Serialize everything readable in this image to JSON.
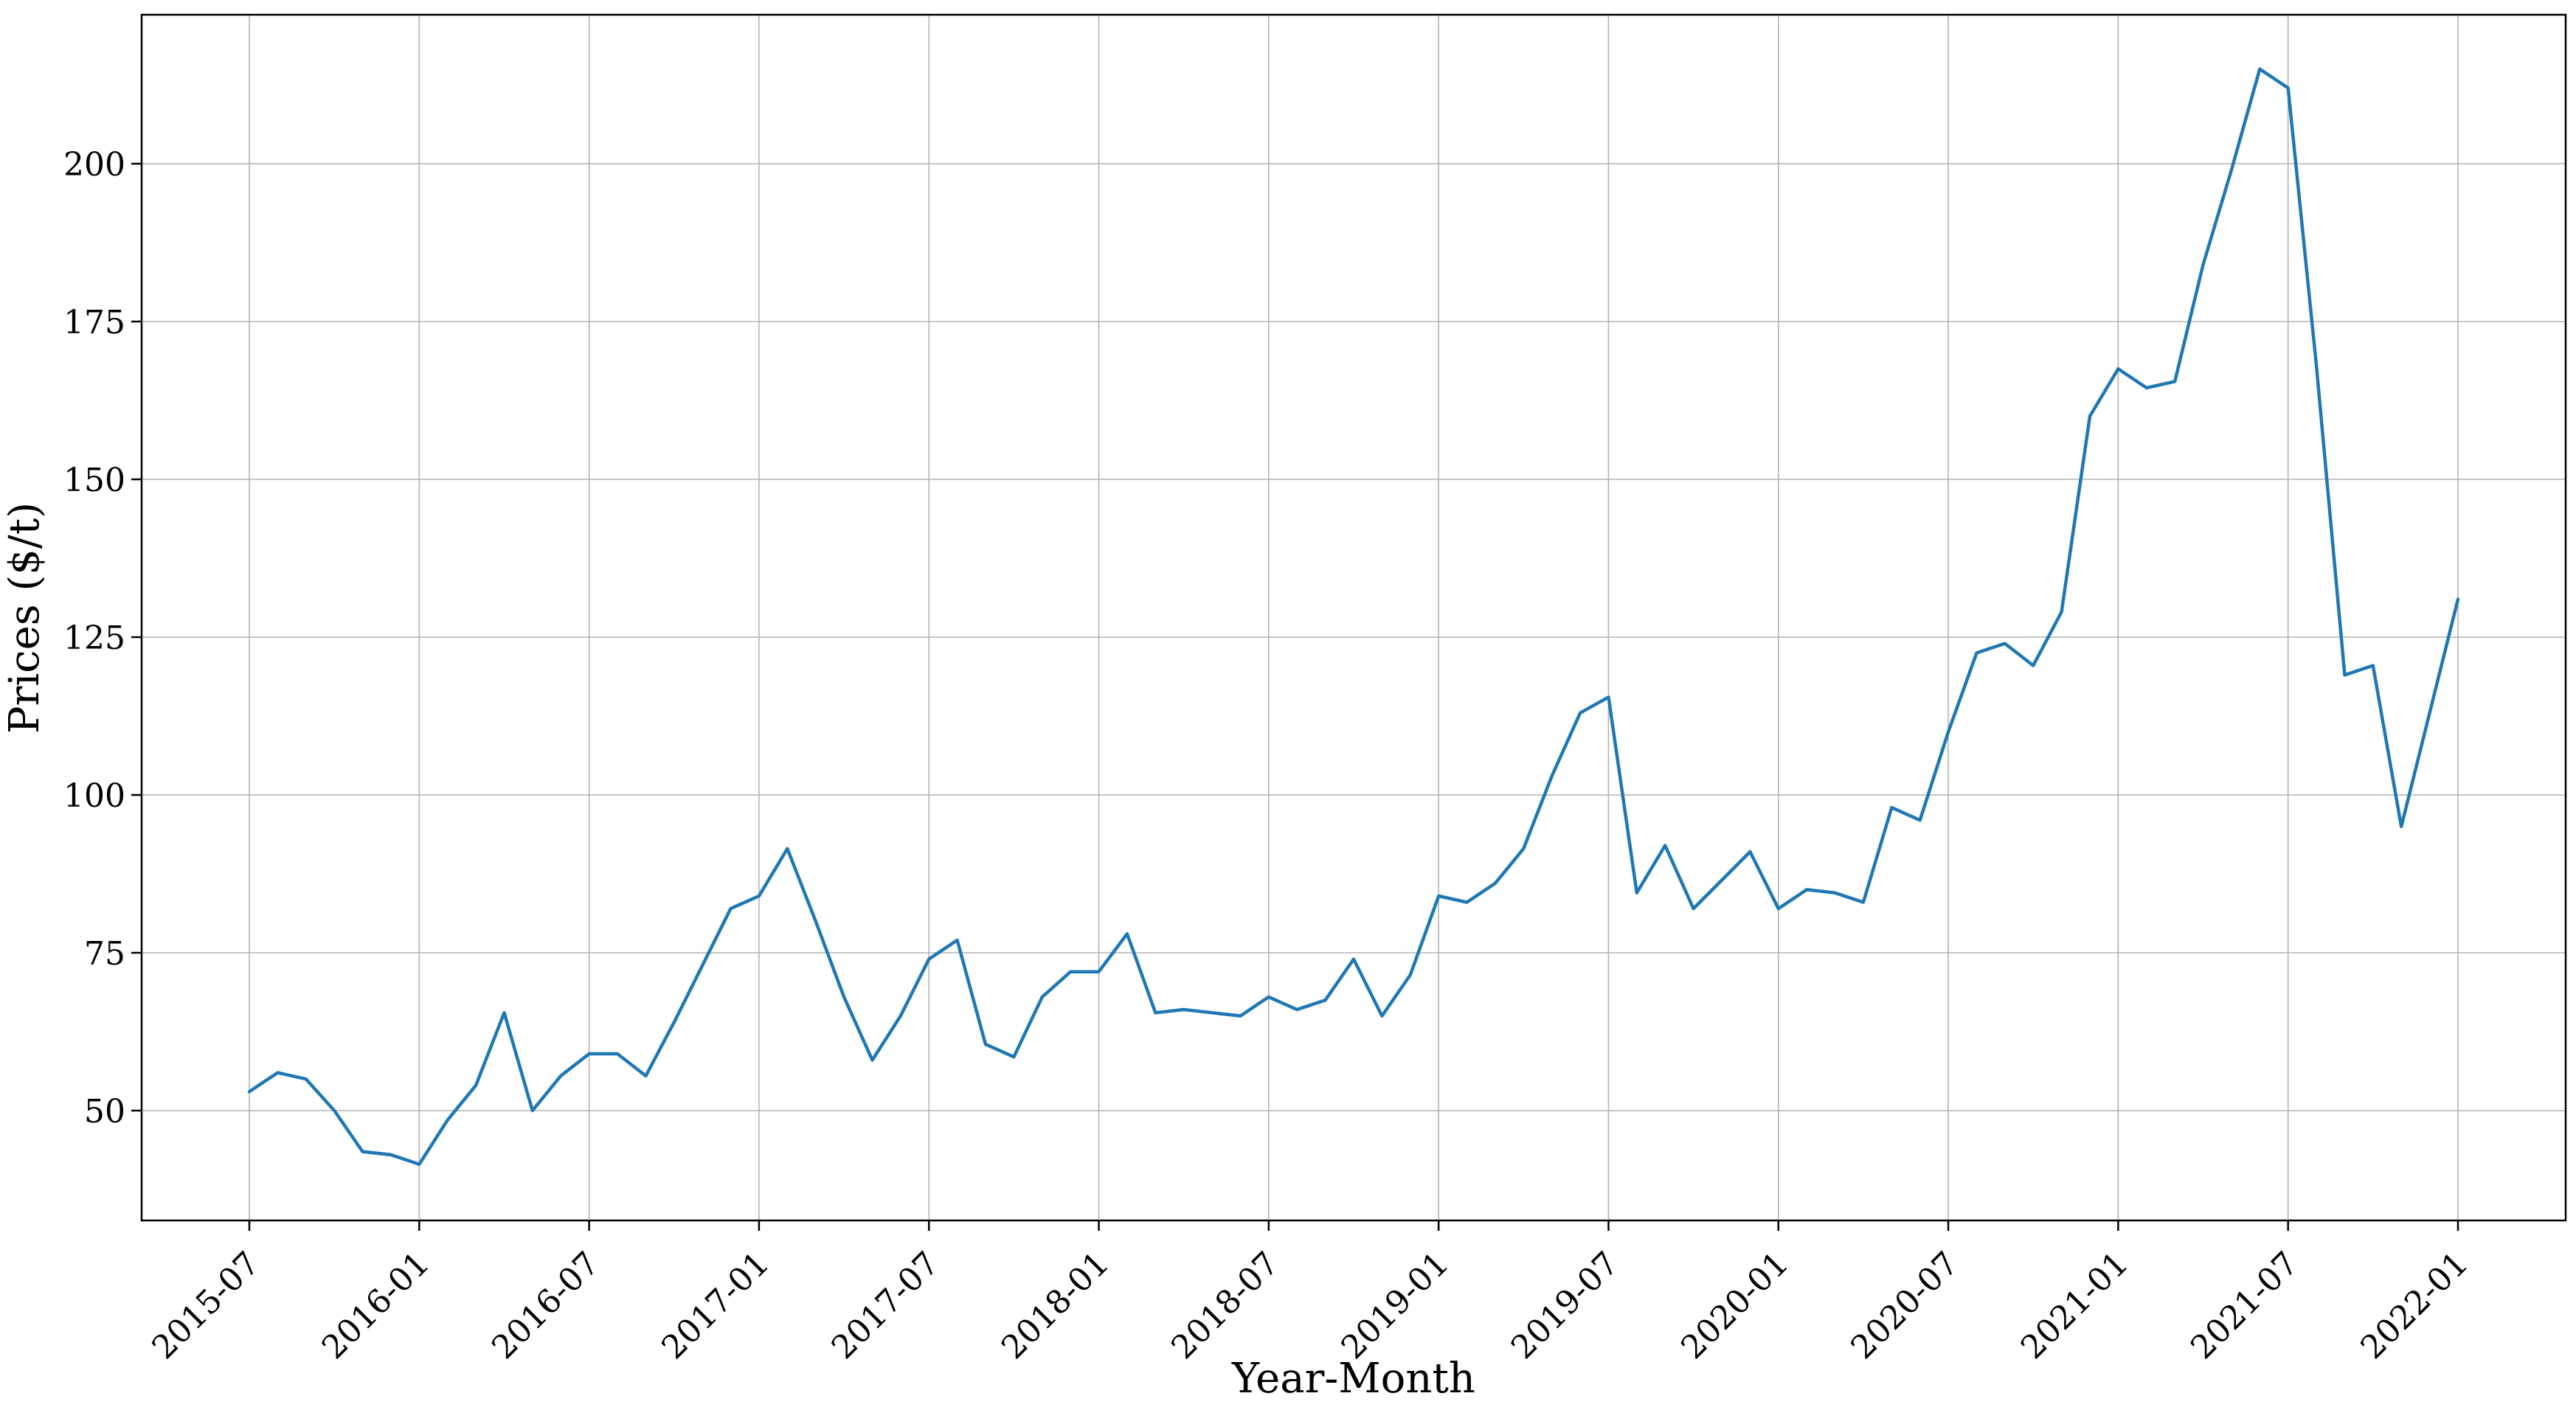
{
  "figure": {
    "background": "#ffffff",
    "grid_color": "#b3b3b3",
    "spine_color": "#000000"
  },
  "chart_data": {
    "type": "line",
    "title": "",
    "xlabel": "Year-Month",
    "ylabel": "Prices ($/t)",
    "grid": true,
    "legend_position": "none",
    "line_color": "#1f77b4",
    "y_ticks": [
      50,
      75,
      100,
      125,
      150,
      175,
      200
    ],
    "ylim": [
      32.5,
      223.5
    ],
    "x_tick_labels": [
      "2015-07",
      "2016-01",
      "2016-07",
      "2017-01",
      "2017-07",
      "2018-01",
      "2018-07",
      "2019-01",
      "2019-07",
      "2020-01",
      "2020-07",
      "2021-01",
      "2021-07",
      "2022-01"
    ],
    "x": [
      "2015-07",
      "2015-08",
      "2015-09",
      "2015-10",
      "2015-11",
      "2015-12",
      "2016-01",
      "2016-02",
      "2016-03",
      "2016-04",
      "2016-05",
      "2016-06",
      "2016-07",
      "2016-08",
      "2016-09",
      "2016-10",
      "2016-11",
      "2016-12",
      "2017-01",
      "2017-02",
      "2017-03",
      "2017-04",
      "2017-05",
      "2017-06",
      "2017-07",
      "2017-08",
      "2017-09",
      "2017-10",
      "2017-11",
      "2017-12",
      "2018-01",
      "2018-02",
      "2018-03",
      "2018-04",
      "2018-05",
      "2018-06",
      "2018-07",
      "2018-08",
      "2018-09",
      "2018-10",
      "2018-11",
      "2018-12",
      "2019-01",
      "2019-02",
      "2019-03",
      "2019-04",
      "2019-05",
      "2019-06",
      "2019-07",
      "2019-08",
      "2019-09",
      "2019-10",
      "2019-11",
      "2019-12",
      "2020-01",
      "2020-02",
      "2020-03",
      "2020-04",
      "2020-05",
      "2020-06",
      "2020-07",
      "2020-08",
      "2020-09",
      "2020-10",
      "2020-11",
      "2020-12",
      "2021-01",
      "2021-02",
      "2021-03",
      "2021-04",
      "2021-05",
      "2021-06",
      "2021-07",
      "2021-08",
      "2021-09",
      "2021-10",
      "2021-11",
      "2021-12",
      "2022-01"
    ],
    "series": [
      {
        "name": "Prices",
        "values": [
          53,
          56,
          55,
          50,
          43.5,
          43,
          41.5,
          48.5,
          54,
          65.5,
          50,
          55.5,
          59,
          59,
          55.5,
          64,
          73,
          82,
          84,
          91.5,
          80,
          68,
          58,
          65,
          74,
          77,
          60.5,
          58.5,
          68,
          72,
          72,
          78,
          65.5,
          66,
          65.5,
          65,
          68,
          66,
          67.5,
          74,
          65,
          71.5,
          84,
          83,
          86,
          91.5,
          103,
          113,
          115.5,
          84.5,
          92,
          82,
          86.5,
          91,
          82,
          85,
          84.5,
          83,
          98,
          96,
          110,
          122.5,
          124,
          120.5,
          129,
          160,
          167.5,
          164.5,
          165.5,
          184,
          199,
          215,
          212,
          168,
          119,
          120.5,
          95,
          113,
          131
        ]
      }
    ]
  }
}
